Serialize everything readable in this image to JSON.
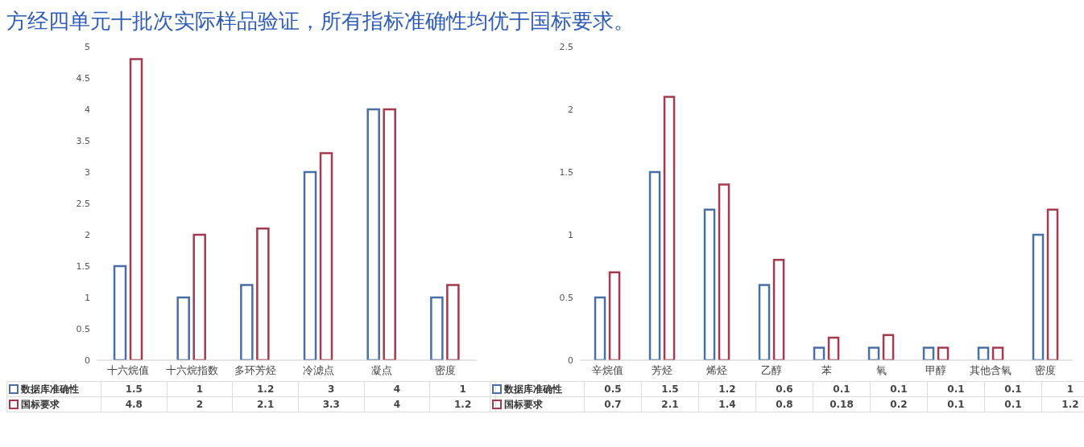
{
  "chart_data": [
    {
      "type": "bar",
      "title": "方经四单元十批次实际样品验证，所有指标准确性均优于国标要求。",
      "categories": [
        "十六烷值",
        "十六烷指数",
        "多环芳烃",
        "冷滤点",
        "凝点",
        "密度"
      ],
      "series": [
        {
          "name": "数据库准确性",
          "color": "#4a6fa5",
          "values": [
            1.5,
            1,
            1.2,
            3,
            4,
            1
          ]
        },
        {
          "name": "国标要求",
          "color": "#a33a50",
          "values": [
            4.8,
            2,
            2.1,
            3.3,
            4,
            1.2
          ]
        }
      ],
      "ylim": [
        0,
        5
      ],
      "yticks": [
        0,
        0.5,
        1,
        1.5,
        2,
        2.5,
        3,
        3.5,
        4,
        4.5,
        5
      ],
      "grid": false,
      "legend": "bottom",
      "data_labels": true
    },
    {
      "type": "bar",
      "categories": [
        "辛烷值",
        "芳烃",
        "烯烃",
        "乙醇",
        "苯",
        "氧",
        "甲醇",
        "其他含氧",
        "密度"
      ],
      "series": [
        {
          "name": "数据库准确性",
          "color": "#4a6fa5",
          "values": [
            0.5,
            1.5,
            1.2,
            0.6,
            0.1,
            0.1,
            0.1,
            0.1,
            1
          ]
        },
        {
          "name": "国标要求",
          "color": "#a33a50",
          "values": [
            0.7,
            2.1,
            1.4,
            0.8,
            0.18,
            0.2,
            0.1,
            0.1,
            1.2
          ]
        }
      ],
      "ylim": [
        0,
        2.5
      ],
      "yticks": [
        0,
        0.5,
        1,
        1.5,
        2,
        2.5
      ],
      "grid": false,
      "legend": "bottom",
      "data_labels": true
    }
  ]
}
